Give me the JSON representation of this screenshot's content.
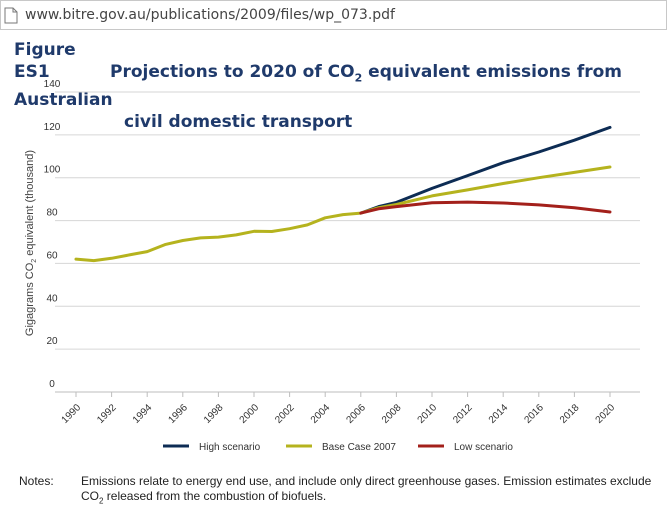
{
  "browser": {
    "url": "www.bitre.gov.au/publications/2009/files/wp_073.pdf"
  },
  "figure": {
    "label": "Figure ES1",
    "title_pre": "Projections to 2020 of CO",
    "title_sub": "2",
    "title_post": " equivalent emissions from Australian",
    "title_line2": "civil domestic transport"
  },
  "notes": {
    "label": "Notes:",
    "text_a": "Emissions relate to energy end use, and include only direct greenhouse gases. Emission estimates exclude CO",
    "text_sub": "2",
    "text_b": " released from the combustion of biofuels."
  },
  "chart_data": {
    "type": "line",
    "ylabel_pre": "Gigagrams CO",
    "ylabel_sub": "2",
    "ylabel_post": " equivalent (thousand)",
    "ylim": [
      0,
      140
    ],
    "yticks": [
      0,
      20,
      40,
      60,
      80,
      100,
      120,
      140
    ],
    "xlim": [
      1990,
      2020
    ],
    "xticks": [
      1990,
      1992,
      1994,
      1996,
      1998,
      2000,
      2002,
      2004,
      2006,
      2008,
      2010,
      2012,
      2014,
      2016,
      2018,
      2020
    ],
    "grid": true,
    "legend_position": "bottom",
    "series": [
      {
        "name": "High scenario",
        "color": "#0d2c54",
        "x": [
          2006,
          2007,
          2008,
          2010,
          2012,
          2014,
          2016,
          2018,
          2020
        ],
        "y": [
          83.5,
          86.5,
          88.5,
          95,
          101,
          107,
          112,
          117.5,
          123.5
        ]
      },
      {
        "name": "Base Case 2007",
        "color": "#b5b31e",
        "x": [
          1990,
          1991,
          1992,
          1993,
          1994,
          1995,
          1996,
          1997,
          1998,
          1999,
          2000,
          2001,
          2002,
          2003,
          2004,
          2005,
          2006,
          2007,
          2008,
          2010,
          2012,
          2014,
          2016,
          2018,
          2020
        ],
        "y": [
          62,
          61.3,
          62.4,
          64,
          65.5,
          68.8,
          70.7,
          71.9,
          72.3,
          73.3,
          75,
          74.9,
          76.2,
          78,
          81.3,
          82.8,
          83.5,
          86,
          87.5,
          91.5,
          94.3,
          97.3,
          100,
          102.5,
          105
        ]
      },
      {
        "name": "Low scenario",
        "color": "#a3201b",
        "x": [
          2006,
          2007,
          2008,
          2010,
          2012,
          2014,
          2016,
          2018,
          2020
        ],
        "y": [
          83.5,
          85.5,
          86.5,
          88.3,
          88.6,
          88.2,
          87.3,
          86,
          84
        ]
      }
    ]
  }
}
